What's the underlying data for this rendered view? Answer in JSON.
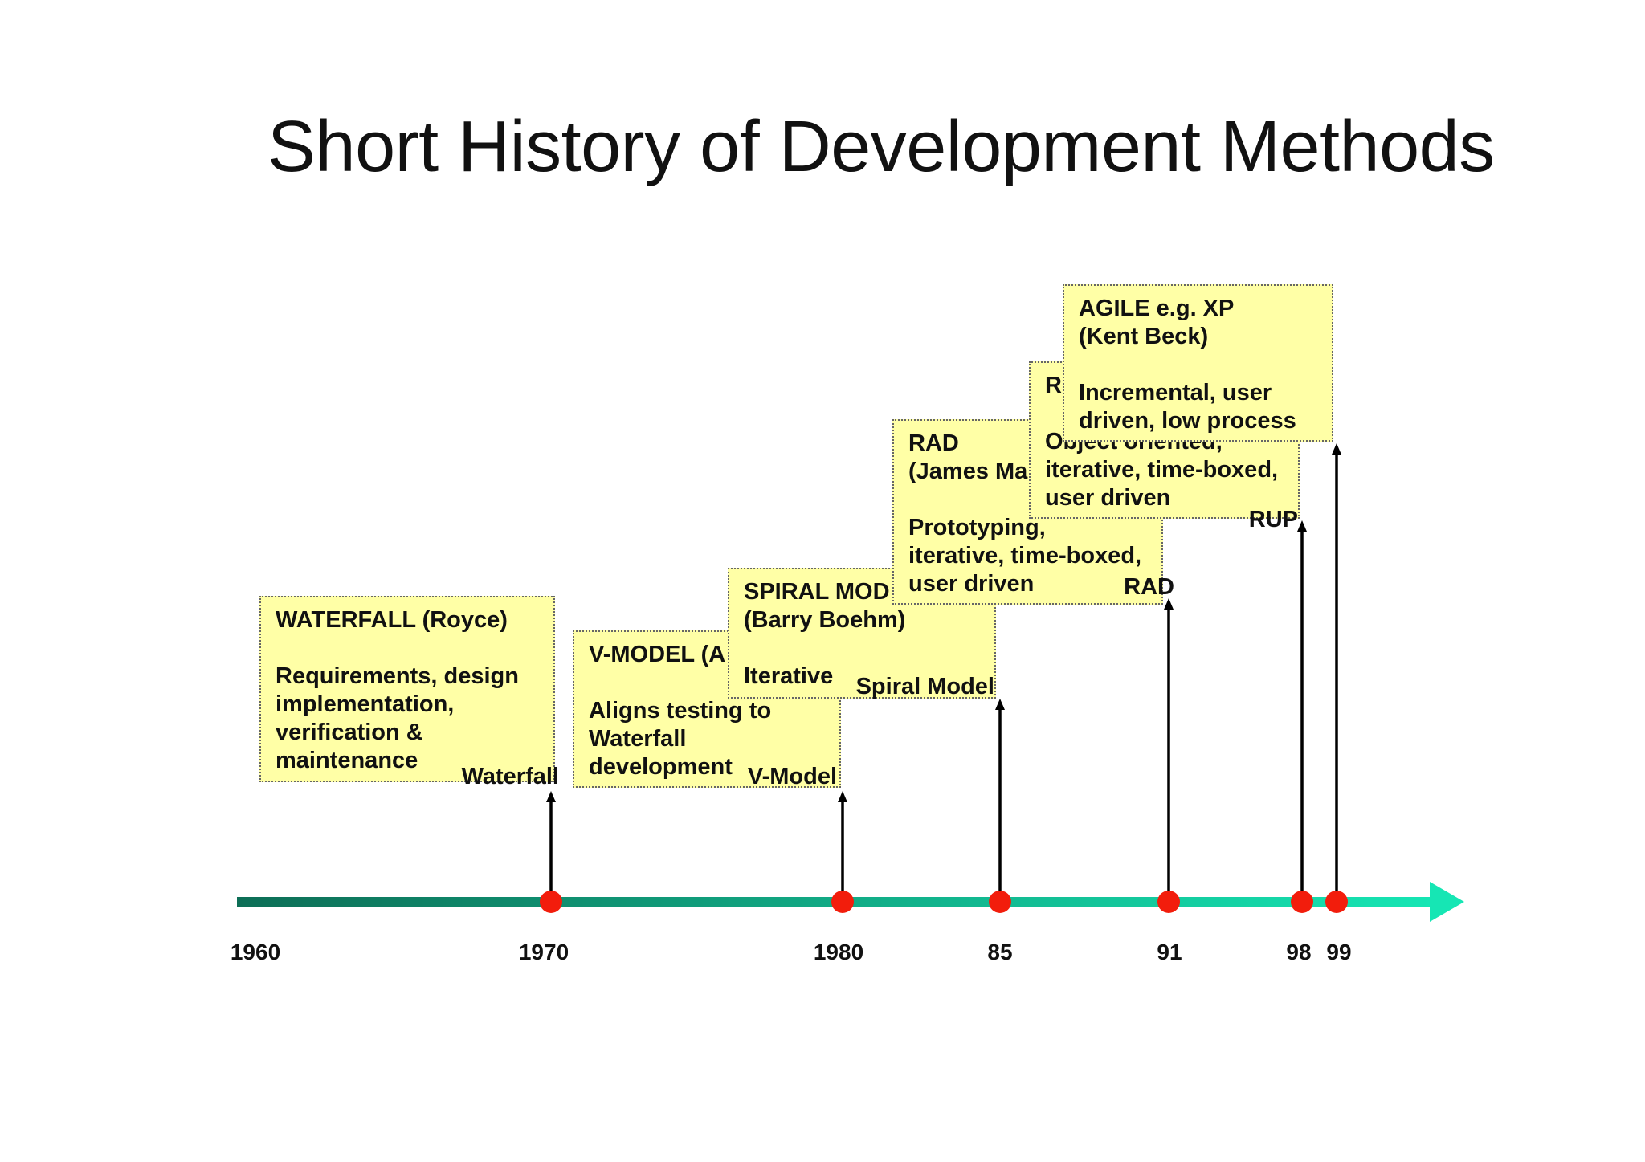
{
  "title": "Short History of Development Methods",
  "colors": {
    "axis_start": "#0d6e56",
    "axis_end": "#16e6b4",
    "dot": "#f21d0c",
    "note_bg": "#ffffa6",
    "arrow": "#000000"
  },
  "timeline": {
    "years": [
      "1960",
      "1970",
      "1980",
      "85",
      "91",
      "98",
      "99"
    ],
    "milestones": [
      {
        "year": "1970",
        "label": "Waterfall",
        "card": [
          "WATERFALL  (Royce)",
          "",
          "Requirements, design",
          "implementation,",
          "verification &",
          "maintenance"
        ]
      },
      {
        "year": "1980",
        "label": "V-Model",
        "card": [
          "V-MODEL  (A",
          "",
          "Aligns testing to",
          "Waterfall",
          "development"
        ]
      },
      {
        "year": "85",
        "label": "Spiral Model",
        "card": [
          "SPIRAL MOD",
          "(Barry Boehm)",
          "",
          "Iterative"
        ]
      },
      {
        "year": "91",
        "label": "RAD",
        "card": [
          "RAD",
          "(James Ma",
          "",
          "Prototyping,",
          "iterative, time-boxed,",
          "user driven"
        ]
      },
      {
        "year": "98",
        "label": "RUP",
        "card": [
          "R",
          "",
          "Object oriented,",
          "iterative, time-boxed,",
          "user driven"
        ]
      },
      {
        "year": "99",
        "label": "",
        "card": [
          "AGILE e.g. XP",
          "(Kent Beck)",
          "",
          "Incremental, user",
          "driven, low process"
        ]
      }
    ]
  }
}
